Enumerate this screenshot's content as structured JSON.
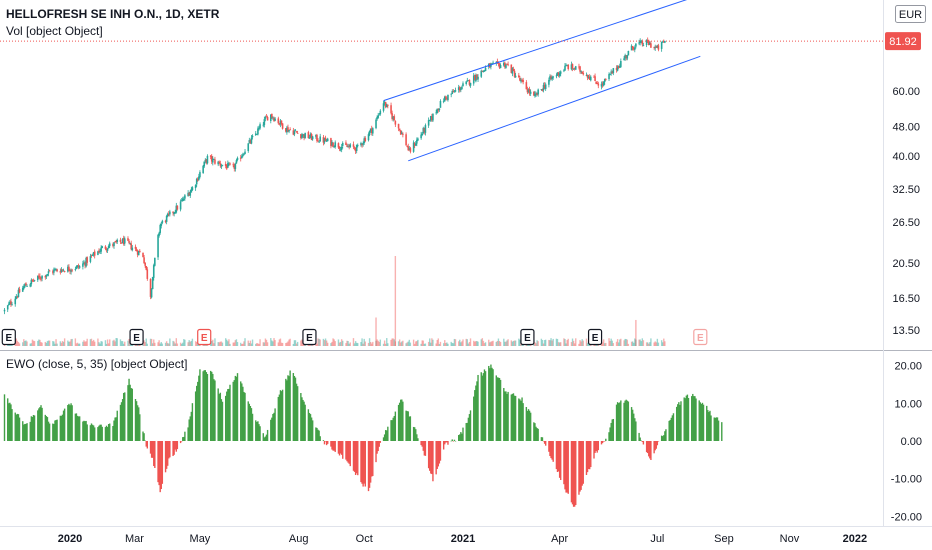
{
  "header": {
    "title": "HELLOFRESH SE INH O.N., 1D, XETR",
    "volume_label": "Vol [object Object]",
    "currency_button": "EUR"
  },
  "indicator": {
    "label": "EWO (close, 5, 35) [object Object]"
  },
  "colors": {
    "up": "#26a69a",
    "down": "#ef5350",
    "ewo_pos": "#43a047",
    "ewo_neg": "#ef5350",
    "channel": "#2962ff",
    "price_badge": "#ef5350"
  },
  "chart_data": [
    {
      "type": "candlestick",
      "title": "HELLOFRESH SE INH O.N., 1D, XETR",
      "scale": "log",
      "ylim": [
        12.8,
        105
      ],
      "y_ticks": [
        "81.92",
        "60.00",
        "48.00",
        "40.00",
        "32.50",
        "26.50",
        "20.50",
        "16.50",
        "13.50"
      ],
      "x_ticks": [
        "2020",
        "Mar",
        "May",
        "Aug",
        "Oct",
        "2021",
        "Apr",
        "Jul",
        "Sep",
        "Nov",
        "2022"
      ],
      "last_price": "81.92",
      "price_path": [
        [
          "2019-11-01",
          15.2
        ],
        [
          "2019-11-20",
          17.8
        ],
        [
          "2019-12-15",
          19.5
        ],
        [
          "2020-01-10",
          20.0
        ],
        [
          "2020-01-31",
          22.5
        ],
        [
          "2020-02-20",
          23.5
        ],
        [
          "2020-03-09",
          21.5
        ],
        [
          "2020-03-16",
          16.8
        ],
        [
          "2020-03-25",
          26.0
        ],
        [
          "2020-04-10",
          29.0
        ],
        [
          "2020-04-25",
          33.0
        ],
        [
          "2020-05-08",
          39.5
        ],
        [
          "2020-05-20",
          38.0
        ],
        [
          "2020-06-01",
          37.0
        ],
        [
          "2020-06-20",
          45.0
        ],
        [
          "2020-07-05",
          52.0
        ],
        [
          "2020-07-20",
          47.5
        ],
        [
          "2020-08-05",
          45.5
        ],
        [
          "2020-08-25",
          44.0
        ],
        [
          "2020-09-10",
          42.5
        ],
        [
          "2020-09-25",
          42.0
        ],
        [
          "2020-10-10",
          48.0
        ],
        [
          "2020-10-19",
          56.0
        ],
        [
          "2020-11-05",
          46.0
        ],
        [
          "2020-11-12",
          41.0
        ],
        [
          "2020-11-28",
          48.0
        ],
        [
          "2020-12-14",
          57.0
        ],
        [
          "2021-01-05",
          63.0
        ],
        [
          "2021-01-25",
          70.0
        ],
        [
          "2021-02-10",
          71.0
        ],
        [
          "2021-02-25",
          63.0
        ],
        [
          "2021-03-08",
          57.5
        ],
        [
          "2021-03-22",
          64.0
        ],
        [
          "2021-04-08",
          70.0
        ],
        [
          "2021-04-22",
          68.0
        ],
        [
          "2021-05-10",
          62.0
        ],
        [
          "2021-05-25",
          70.0
        ],
        [
          "2021-06-10",
          80.0
        ],
        [
          "2021-06-22",
          81.0
        ],
        [
          "2021-07-01",
          78.0
        ],
        [
          "2021-07-08",
          81.9
        ]
      ],
      "events": [
        {
          "date": "2019-11-05",
          "label": "E",
          "kind": "past"
        },
        {
          "date": "2020-03-03",
          "label": "E",
          "kind": "past"
        },
        {
          "date": "2020-05-05",
          "label": "E",
          "kind": "active"
        },
        {
          "date": "2020-08-11",
          "label": "E",
          "kind": "past"
        },
        {
          "date": "2021-03-02",
          "label": "E",
          "kind": "past"
        },
        {
          "date": "2021-05-04",
          "label": "E",
          "kind": "past"
        },
        {
          "date": "2021-08-10",
          "label": "E",
          "kind": "future"
        }
      ],
      "channel": {
        "upper": [
          [
            "2020-10-19",
            56.5
          ],
          [
            "2021-08-05",
            108.0
          ]
        ],
        "lower": [
          [
            "2020-11-11",
            38.8
          ],
          [
            "2021-08-10",
            74.5
          ]
        ]
      },
      "volume_spikes": [
        [
          "2020-10-30",
          1.0
        ],
        [
          "2020-10-12",
          0.25
        ],
        [
          "2021-06-11",
          0.22
        ]
      ]
    },
    {
      "type": "bar",
      "title": "EWO (close, 5, 35) [object Object]",
      "ylim": [
        -21.5,
        21.5
      ],
      "y_ticks": [
        "20.00",
        "10.00",
        "0.00",
        "-10.00",
        "-20.00"
      ],
      "ewo_path": [
        [
          "2019-11-01",
          12.0
        ],
        [
          "2019-11-20",
          4.0
        ],
        [
          "2019-12-05",
          9.0
        ],
        [
          "2019-12-15",
          4.0
        ],
        [
          "2020-01-01",
          10.0
        ],
        [
          "2020-01-10",
          6.0
        ],
        [
          "2020-01-25",
          3.5
        ],
        [
          "2020-02-10",
          4.5
        ],
        [
          "2020-02-25",
          16.0
        ],
        [
          "2020-03-05",
          9.0
        ],
        [
          "2020-03-12",
          -1.5
        ],
        [
          "2020-03-18",
          -5.0
        ],
        [
          "2020-03-25",
          -13.5
        ],
        [
          "2020-04-02",
          -5.0
        ],
        [
          "2020-04-10",
          -2.0
        ],
        [
          "2020-04-20",
          4.0
        ],
        [
          "2020-05-01",
          19.0
        ],
        [
          "2020-05-12",
          18.0
        ],
        [
          "2020-05-22",
          11.0
        ],
        [
          "2020-06-05",
          18.0
        ],
        [
          "2020-06-20",
          7.0
        ],
        [
          "2020-07-01",
          1.0
        ],
        [
          "2020-07-15",
          13.0
        ],
        [
          "2020-07-25",
          19.0
        ],
        [
          "2020-08-10",
          8.0
        ],
        [
          "2020-08-25",
          -0.5
        ],
        [
          "2020-09-05",
          -2.5
        ],
        [
          "2020-09-20",
          -7.5
        ],
        [
          "2020-10-05",
          -13.5
        ],
        [
          "2020-10-15",
          -1.5
        ],
        [
          "2020-10-25",
          5.0
        ],
        [
          "2020-11-05",
          11.0
        ],
        [
          "2020-11-15",
          5.0
        ],
        [
          "2020-11-25",
          -2.5
        ],
        [
          "2020-12-05",
          -11.0
        ],
        [
          "2020-12-15",
          -1.0
        ],
        [
          "2020-12-28",
          1.0
        ],
        [
          "2021-01-05",
          5.0
        ],
        [
          "2021-01-15",
          17.0
        ],
        [
          "2021-01-28",
          20.0
        ],
        [
          "2021-02-10",
          13.0
        ],
        [
          "2021-02-25",
          11.0
        ],
        [
          "2021-03-05",
          7.0
        ],
        [
          "2021-03-15",
          1.0
        ],
        [
          "2021-03-25",
          -4.5
        ],
        [
          "2021-04-05",
          -12.0
        ],
        [
          "2021-04-15",
          -17.5
        ],
        [
          "2021-04-25",
          -10.0
        ],
        [
          "2021-05-05",
          -3.0
        ],
        [
          "2021-05-15",
          1.0
        ],
        [
          "2021-05-25",
          10.0
        ],
        [
          "2021-06-05",
          11.0
        ],
        [
          "2021-06-15",
          1.0
        ],
        [
          "2021-06-25",
          -5.0
        ],
        [
          "2021-07-01",
          -1.0
        ],
        [
          "2021-07-08",
          2.5
        ],
        [
          "2021-07-18",
          9.0
        ],
        [
          "2021-08-01",
          12.5
        ],
        [
          "2021-08-15",
          9.5
        ],
        [
          "2021-08-22",
          6.5
        ],
        [
          "2021-08-30",
          5.0
        ]
      ]
    }
  ]
}
